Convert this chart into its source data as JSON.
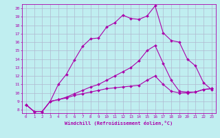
{
  "xlabel": "Windchill (Refroidissement éolien,°C)",
  "xlim": [
    -0.5,
    23.5
  ],
  "ylim": [
    7.6,
    20.5
  ],
  "yticks": [
    8,
    9,
    10,
    11,
    12,
    13,
    14,
    15,
    16,
    17,
    18,
    19,
    20
  ],
  "xticks": [
    0,
    1,
    2,
    3,
    4,
    5,
    6,
    7,
    8,
    9,
    10,
    11,
    12,
    13,
    14,
    15,
    16,
    17,
    18,
    19,
    20,
    21,
    22,
    23
  ],
  "bg_color": "#c0eef0",
  "grid_color": "#b0b8d0",
  "line_color": "#aa00aa",
  "line1_x": [
    0,
    1,
    2,
    3,
    4,
    5,
    6,
    7,
    8,
    9,
    10,
    11,
    12,
    13,
    14,
    15,
    16,
    17,
    18,
    19,
    20,
    21,
    22,
    23
  ],
  "line1_y": [
    8.6,
    7.8,
    7.8,
    9.0,
    11.0,
    12.2,
    13.9,
    15.5,
    16.4,
    16.5,
    17.8,
    18.3,
    19.2,
    18.8,
    18.7,
    19.1,
    20.3,
    17.1,
    16.2,
    16.0,
    14.0,
    13.2,
    11.2,
    10.4
  ],
  "line2_x": [
    0,
    1,
    2,
    3,
    4,
    5,
    6,
    7,
    8,
    9,
    10,
    11,
    12,
    13,
    14,
    15,
    16,
    17,
    18,
    19,
    20,
    21,
    22,
    23
  ],
  "line2_y": [
    8.6,
    7.8,
    7.8,
    9.0,
    9.2,
    9.4,
    9.7,
    9.9,
    10.1,
    10.3,
    10.5,
    10.6,
    10.7,
    10.8,
    10.9,
    11.5,
    12.0,
    11.0,
    10.2,
    10.0,
    10.0,
    10.1,
    10.4,
    10.5
  ],
  "line3_x": [
    0,
    1,
    2,
    3,
    4,
    5,
    6,
    7,
    8,
    9,
    10,
    11,
    12,
    13,
    14,
    15,
    16,
    17,
    18,
    19,
    20,
    21,
    22,
    23
  ],
  "line3_y": [
    8.6,
    7.8,
    7.8,
    9.0,
    9.2,
    9.5,
    9.9,
    10.3,
    10.7,
    11.0,
    11.5,
    12.0,
    12.5,
    13.0,
    13.8,
    15.0,
    15.6,
    13.5,
    11.5,
    10.2,
    10.1,
    10.1,
    10.4,
    10.5
  ]
}
